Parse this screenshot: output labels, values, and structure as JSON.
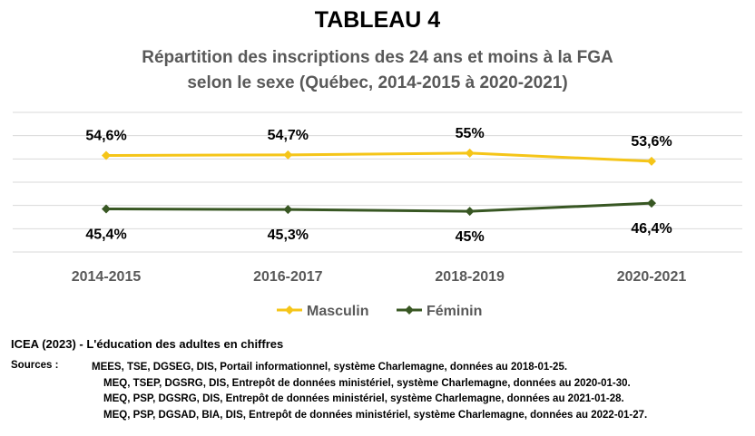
{
  "chart_data": {
    "type": "line",
    "title": "TABLEAU 4",
    "subtitle_line1": "Répartition des inscriptions des 24 ans et moins à la FGA",
    "subtitle_line2": "selon le sexe (Québec, 2014-2015 à 2020-2021)",
    "categories": [
      "2014-2015",
      "2016-2017",
      "2018-2019",
      "2020-2021"
    ],
    "series": [
      {
        "name": "Masculin",
        "values": [
          54.6,
          54.7,
          55,
          53.6
        ],
        "labels": [
          "54,6%",
          "54,7%",
          "55%",
          "53,6%"
        ],
        "color": "#F5C518"
      },
      {
        "name": "Féminin",
        "values": [
          45.4,
          45.3,
          45,
          46.4
        ],
        "labels": [
          "45,4%",
          "45,3%",
          "45%",
          "46,4%"
        ],
        "color": "#385723"
      }
    ],
    "ylim": [
      38,
      62
    ],
    "grid": true,
    "legend": "bottom"
  },
  "footer": {
    "branding": "ICEA (2023) - L'éducation des adultes en chiffres",
    "sources_label": "Sources :",
    "sources": [
      "MEES, TSE, DGSEG, DIS, Portail informationnel, système Charlemagne, données au 2018-01-25.",
      "MEQ, TSEP, DGSRG, DIS, Entrepôt de données ministériel, système Charlemagne, données au 2020-01-30.",
      "MEQ, PSP, DGSRG, DIS, Entrepôt de données ministériel, système Charlemagne, données au 2021-01-28.",
      "MEQ, PSP, DGSAD, BIA, DIS, Entrepôt de données ministériel, système Charlemagne, données au 2022-01-27."
    ]
  }
}
